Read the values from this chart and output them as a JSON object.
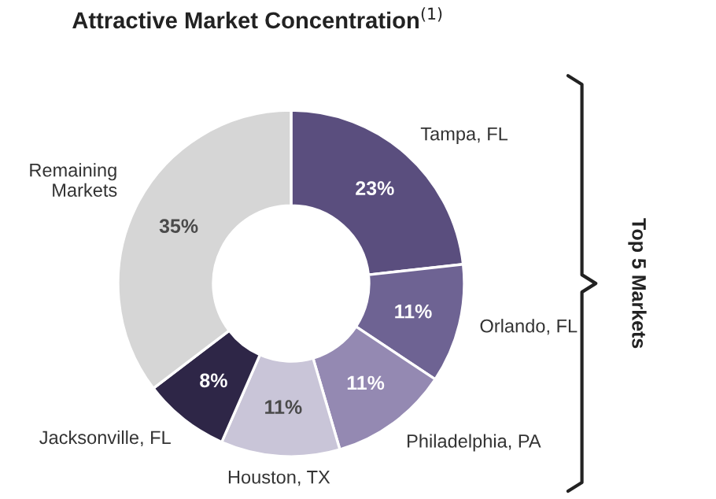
{
  "chart_data": {
    "type": "donut",
    "title": "Attractive Market Concentration$^{(1)}$",
    "categories": [
      "Tampa, FL",
      "Orlando, FL",
      "Philadelphia, PA",
      "Houston, TX",
      "Jacksonville, FL",
      "Remaining\nMarkets"
    ],
    "values": [
      23,
      11,
      11,
      11,
      8,
      35
    ],
    "value_labels": [
      "23%",
      "11%",
      "11%",
      "11%",
      "8%",
      "35%"
    ],
    "colors": [
      "#5a4e7e",
      "#6e6393",
      "#9489b2",
      "#c9c5d8",
      "#2e2647",
      "#d6d6d6"
    ],
    "annotations": [
      "Top 5 Markets"
    ],
    "legend": false
  }
}
